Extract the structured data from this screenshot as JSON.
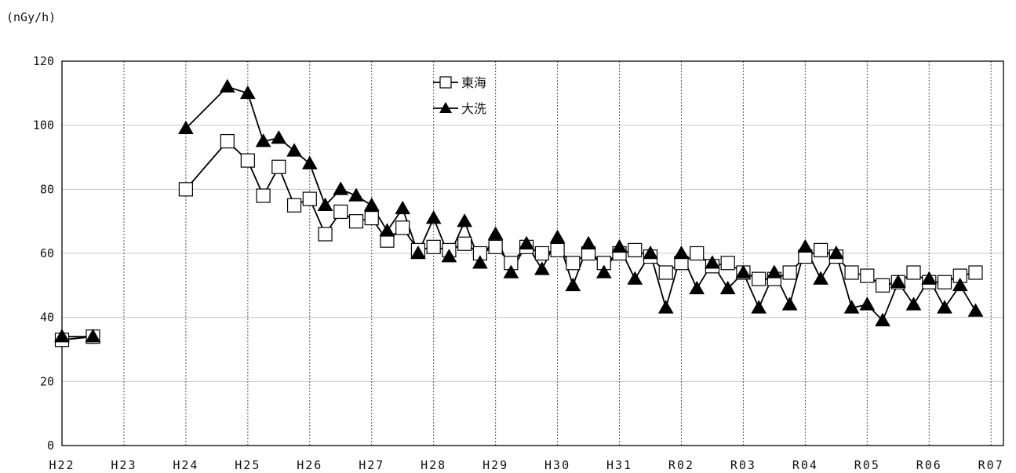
{
  "chart_data": {
    "type": "line",
    "unit_label": "(nGy/h)",
    "ylim": [
      0,
      120
    ],
    "y_ticks": [
      0,
      20,
      40,
      60,
      80,
      100,
      120
    ],
    "x_ticks": [
      "H22",
      "H23",
      "H24",
      "H25",
      "H26",
      "H27",
      "H28",
      "H29",
      "H30",
      "H31",
      "R02",
      "R03",
      "R04",
      "R05",
      "R06",
      "R07"
    ],
    "xlim": [
      0,
      15.2
    ],
    "grid": true,
    "legend_position": "top-center",
    "series": [
      {
        "name": "東海",
        "marker": "open-square",
        "segments": [
          [
            [
              0,
              33
            ],
            [
              0.5,
              34
            ]
          ],
          [
            [
              2,
              80
            ],
            [
              2.67,
              95
            ],
            [
              3,
              89
            ],
            [
              3.25,
              78
            ],
            [
              3.5,
              87
            ],
            [
              3.75,
              75
            ],
            [
              4,
              77
            ],
            [
              4.25,
              66
            ],
            [
              4.5,
              73
            ],
            [
              4.75,
              70
            ],
            [
              5,
              71
            ],
            [
              5.25,
              64
            ],
            [
              5.5,
              68
            ],
            [
              5.75,
              61
            ],
            [
              6,
              62
            ],
            [
              6.25,
              61
            ],
            [
              6.5,
              63
            ],
            [
              6.75,
              60
            ],
            [
              7,
              62
            ],
            [
              7.25,
              57
            ],
            [
              7.5,
              62
            ],
            [
              7.75,
              60
            ],
            [
              8,
              61
            ],
            [
              8.25,
              57
            ],
            [
              8.5,
              60
            ],
            [
              8.75,
              57
            ],
            [
              9,
              60
            ],
            [
              9.25,
              61
            ],
            [
              9.5,
              59
            ],
            [
              9.75,
              54
            ],
            [
              10,
              57
            ],
            [
              10.25,
              60
            ],
            [
              10.5,
              56
            ],
            [
              10.75,
              57
            ],
            [
              11,
              54
            ],
            [
              11.25,
              52
            ],
            [
              11.5,
              52
            ],
            [
              11.75,
              54
            ],
            [
              12,
              59
            ],
            [
              12.25,
              61
            ],
            [
              12.5,
              59
            ],
            [
              12.75,
              54
            ],
            [
              13,
              53
            ],
            [
              13.25,
              50
            ],
            [
              13.5,
              51
            ],
            [
              13.75,
              54
            ],
            [
              14,
              51
            ],
            [
              14.25,
              51
            ],
            [
              14.5,
              53
            ],
            [
              14.75,
              54
            ]
          ]
        ]
      },
      {
        "name": "大洗",
        "marker": "filled-triangle",
        "segments": [
          [
            [
              0,
              34
            ],
            [
              0.5,
              34
            ]
          ],
          [
            [
              2,
              99
            ],
            [
              2.67,
              112
            ],
            [
              3,
              110
            ],
            [
              3.25,
              95
            ],
            [
              3.5,
              96
            ],
            [
              3.75,
              92
            ],
            [
              4,
              88
            ],
            [
              4.25,
              75
            ],
            [
              4.5,
              80
            ],
            [
              4.75,
              78
            ],
            [
              5,
              75
            ],
            [
              5.25,
              67
            ],
            [
              5.5,
              74
            ],
            [
              5.75,
              60
            ],
            [
              6,
              71
            ],
            [
              6.25,
              59
            ],
            [
              6.5,
              70
            ],
            [
              6.75,
              57
            ],
            [
              7,
              66
            ],
            [
              7.25,
              54
            ],
            [
              7.5,
              63
            ],
            [
              7.75,
              55
            ],
            [
              8,
              65
            ],
            [
              8.25,
              50
            ],
            [
              8.5,
              63
            ],
            [
              8.75,
              54
            ],
            [
              9,
              62
            ],
            [
              9.25,
              52
            ],
            [
              9.5,
              60
            ],
            [
              9.75,
              43
            ],
            [
              10,
              60
            ],
            [
              10.25,
              49
            ],
            [
              10.5,
              57
            ],
            [
              10.75,
              49
            ],
            [
              11,
              54
            ],
            [
              11.25,
              43
            ],
            [
              11.5,
              54
            ],
            [
              11.75,
              44
            ],
            [
              12,
              62
            ],
            [
              12.25,
              52
            ],
            [
              12.5,
              60
            ],
            [
              12.75,
              43
            ],
            [
              13,
              44
            ],
            [
              13.25,
              39
            ],
            [
              13.5,
              51
            ],
            [
              13.75,
              44
            ],
            [
              14,
              52
            ],
            [
              14.25,
              43
            ],
            [
              14.5,
              50
            ],
            [
              14.75,
              42
            ]
          ]
        ]
      }
    ]
  }
}
